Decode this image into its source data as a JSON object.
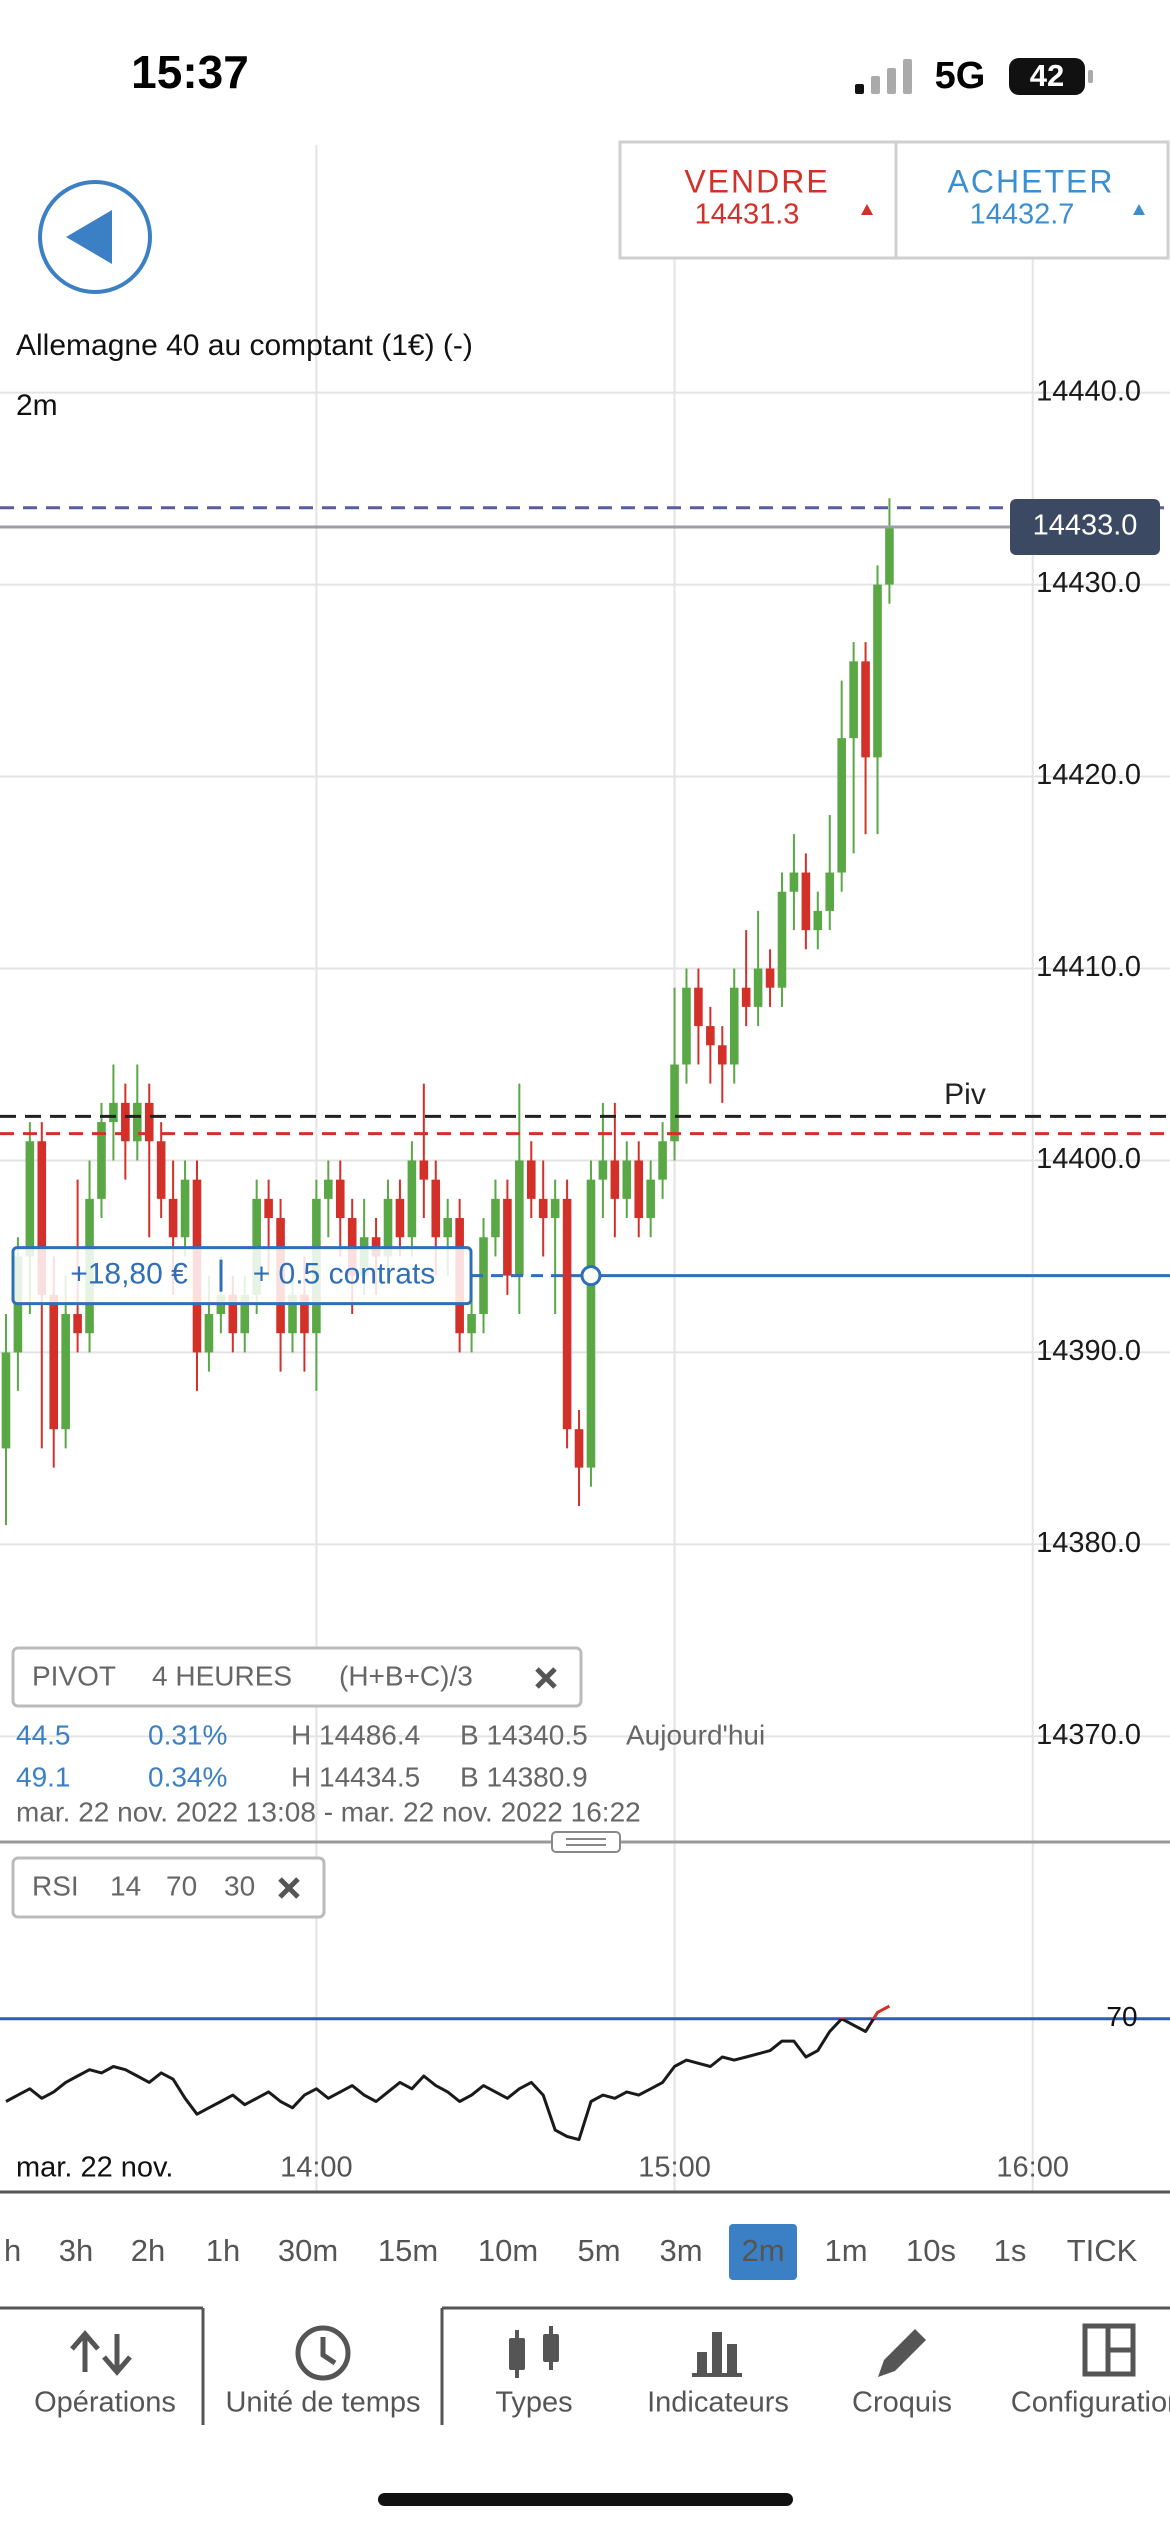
{
  "status_bar": {
    "time": "15:37",
    "network": "5G",
    "battery": "42"
  },
  "header": {
    "sell": {
      "label": "VENDRE",
      "price": "14431.3"
    },
    "buy": {
      "label": "ACHETER",
      "price": "14432.7"
    }
  },
  "instrument": {
    "name": "Allemagne 40 au comptant (1€) (-)",
    "interval": "2m"
  },
  "chart_data": [
    {
      "type": "candlestick",
      "x": [
        "13:08",
        "13:10",
        "13:12",
        "13:14",
        "13:16",
        "13:18",
        "13:20",
        "13:22",
        "13:24",
        "13:26",
        "13:28",
        "13:30",
        "13:32",
        "13:34",
        "13:36",
        "13:38",
        "13:40",
        "13:42",
        "13:44",
        "13:46",
        "13:48",
        "13:50",
        "13:52",
        "13:54",
        "13:56",
        "13:58",
        "14:00",
        "14:02",
        "14:04",
        "14:06",
        "14:08",
        "14:10",
        "14:12",
        "14:14",
        "14:16",
        "14:18",
        "14:20",
        "14:22",
        "14:24",
        "14:26",
        "14:28",
        "14:30",
        "14:32",
        "14:34",
        "14:36",
        "14:38",
        "14:40",
        "14:42",
        "14:44",
        "14:46",
        "14:48",
        "14:50",
        "14:52",
        "14:54",
        "14:56",
        "14:58",
        "15:00",
        "15:02",
        "15:04",
        "15:06",
        "15:08",
        "15:10",
        "15:12",
        "15:14",
        "15:16",
        "15:18",
        "15:20",
        "15:22",
        "15:24",
        "15:26",
        "15:28",
        "15:30",
        "15:32",
        "15:34",
        "15:36"
      ],
      "open": [
        14385,
        14390,
        14395,
        14401,
        14393,
        14386,
        14392,
        14391,
        14398,
        14402,
        14403,
        14401,
        14403,
        14401,
        14398,
        14396,
        14399,
        14390,
        14392,
        14393,
        14391,
        14393,
        14398,
        14397,
        14391,
        14393,
        14391,
        14398,
        14399,
        14397,
        14394,
        14396,
        14395,
        14398,
        14396,
        14400,
        14399,
        14396,
        14397,
        14391,
        14392,
        14396,
        14398,
        14394,
        14400,
        14398,
        14397,
        14398,
        14386,
        14384,
        14399,
        14400,
        14398,
        14400,
        14397,
        14399,
        14401,
        14405,
        14409,
        14407,
        14406,
        14405,
        14409,
        14408,
        14410,
        14409,
        14414,
        14415,
        14412,
        14413,
        14415,
        14422,
        14426,
        14421,
        14430
      ],
      "high": [
        14392,
        14396,
        14402,
        14402,
        14395,
        14394,
        14399,
        14400,
        14403,
        14405,
        14404,
        14405,
        14404,
        14402,
        14400,
        14400,
        14400,
        14394,
        14395,
        14394,
        14394,
        14399,
        14399,
        14398,
        14394,
        14395,
        14399,
        14400,
        14400,
        14398,
        14398,
        14397,
        14399,
        14399,
        14401,
        14404,
        14400,
        14398,
        14398,
        14394,
        14397,
        14399,
        14399,
        14404,
        14401,
        14400,
        14399,
        14399,
        14387,
        14400,
        14403,
        14403,
        14401,
        14401,
        14400,
        14402,
        14409,
        14410,
        14410,
        14408,
        14407,
        14410,
        14412,
        14413,
        14411,
        14415,
        14417,
        14416,
        14414,
        14418,
        14425,
        14427,
        14427,
        14431,
        14434.5
      ],
      "low": [
        14381,
        14388,
        14392,
        14385,
        14384,
        14385,
        14390,
        14390,
        14397,
        14400,
        14399,
        14400,
        14396,
        14397,
        14393,
        14395,
        14388,
        14389,
        14391,
        14390,
        14390,
        14392,
        14394,
        14389,
        14390,
        14389,
        14388,
        14396,
        14395,
        14392,
        14393,
        14393,
        14394,
        14395,
        14395,
        14397,
        14394,
        14394,
        14390,
        14390,
        14391,
        14395,
        14393,
        14392,
        14397,
        14395,
        14392,
        14385,
        14382,
        14383,
        14397,
        14396,
        14397,
        14396,
        14396,
        14398,
        14400,
        14404,
        14405,
        14404,
        14403,
        14404,
        14407,
        14407,
        14408,
        14408,
        14412,
        14411,
        14411,
        14412,
        14414,
        14416,
        14417,
        14417,
        14429
      ],
      "close": [
        14390,
        14395,
        14401,
        14393,
        14386,
        14392,
        14391,
        14398,
        14402,
        14403,
        14401,
        14403,
        14401,
        14398,
        14396,
        14399,
        14390,
        14392,
        14393,
        14391,
        14393,
        14398,
        14397,
        14391,
        14393,
        14391,
        14398,
        14399,
        14397,
        14394,
        14396,
        14395,
        14398,
        14396,
        14400,
        14399,
        14396,
        14397,
        14391,
        14392,
        14396,
        14398,
        14394,
        14400,
        14398,
        14397,
        14398,
        14386,
        14384,
        14399,
        14400,
        14398,
        14400,
        14397,
        14399,
        14401,
        14405,
        14409,
        14407,
        14406,
        14405,
        14409,
        14408,
        14410,
        14409,
        14414,
        14415,
        14412,
        14413,
        14415,
        14422,
        14426,
        14421,
        14430,
        14433
      ],
      "up_color": "#5aa845",
      "down_color": "#d3302a",
      "xlim": [
        "13:07",
        "16:23"
      ],
      "xticks": [
        "14:00",
        "15:00",
        "16:00"
      ],
      "x_date_label": "mar. 22 nov.",
      "ylim": [
        14364.6,
        14452.9
      ],
      "yticks": [
        {
          "value": 14370,
          "label": "14370.0"
        },
        {
          "value": 14380,
          "label": "14380.0"
        },
        {
          "value": 14390,
          "label": "14390.0"
        },
        {
          "value": 14400,
          "label": "14400.0"
        },
        {
          "value": 14410,
          "label": "14410.0"
        },
        {
          "value": 14420,
          "label": "14420.0"
        },
        {
          "value": 14430,
          "label": "14430.0"
        },
        {
          "value": 14440,
          "label": "14440.0"
        }
      ],
      "grid": true,
      "last_price": {
        "value": 14433.0,
        "label": "14433.0",
        "color": "#3b4a62"
      },
      "pivot": {
        "value": 14402.3,
        "label": "Piv",
        "color": "#222222"
      },
      "lines": [
        {
          "value": 14434,
          "color": "#5b5b9e"
        },
        {
          "value": 14401.4,
          "color": "#d3302a"
        }
      ],
      "position": {
        "value": 14394,
        "time": "14:46",
        "pnl": "+18,80 €",
        "size": "+ 0.5 contrats",
        "color": "#2f6fb8"
      }
    },
    {
      "type": "line",
      "title": "RSI",
      "params": [
        14,
        70,
        30
      ],
      "values": [
        44,
        46,
        48,
        45,
        47,
        50,
        52,
        54,
        53,
        55,
        54,
        52,
        50,
        53,
        51,
        45,
        40,
        42,
        44,
        46,
        43,
        45,
        47,
        44,
        42,
        46,
        48,
        45,
        47,
        49,
        46,
        44,
        47,
        50,
        48,
        52,
        49,
        47,
        44,
        46,
        49,
        47,
        45,
        48,
        50,
        46,
        35,
        33,
        32,
        44,
        46,
        45,
        47,
        46,
        48,
        50,
        55,
        57,
        56,
        55,
        58,
        57,
        58,
        59,
        60,
        63,
        63,
        58,
        60,
        66,
        70,
        68,
        66,
        72,
        74
      ],
      "line_color": "#1a1a1a",
      "overbought_color": "#d3302a",
      "level_color": "#2f5fa8",
      "ylim": [
        30,
        80
      ],
      "yticks": [
        70
      ]
    }
  ],
  "pivot_indicator": {
    "name": "PIVOT",
    "period": "4 HEURES",
    "formula": "(H+B+C)/3",
    "rows": [
      [
        "44.5",
        "0.31%",
        "H 14486.4",
        "B 14340.5",
        "Aujourd'hui"
      ],
      [
        "49.1",
        "0.34%",
        "H 14434.5",
        "B 14380.9"
      ]
    ],
    "range": "mar. 22 nov. 2022 13:08 - mar. 22 nov. 2022 16:22"
  },
  "timeframes": [
    "h",
    "3h",
    "2h",
    "1h",
    "30m",
    "15m",
    "10m",
    "5m",
    "3m",
    "2m",
    "1m",
    "10s",
    "1s",
    "TICK"
  ],
  "selected_timeframe": "2m",
  "tabs": [
    "Opérations",
    "Unité de temps",
    "Types",
    "Indicateurs",
    "Croquis",
    "Configuration"
  ],
  "selected_tab": "Unité de temps"
}
